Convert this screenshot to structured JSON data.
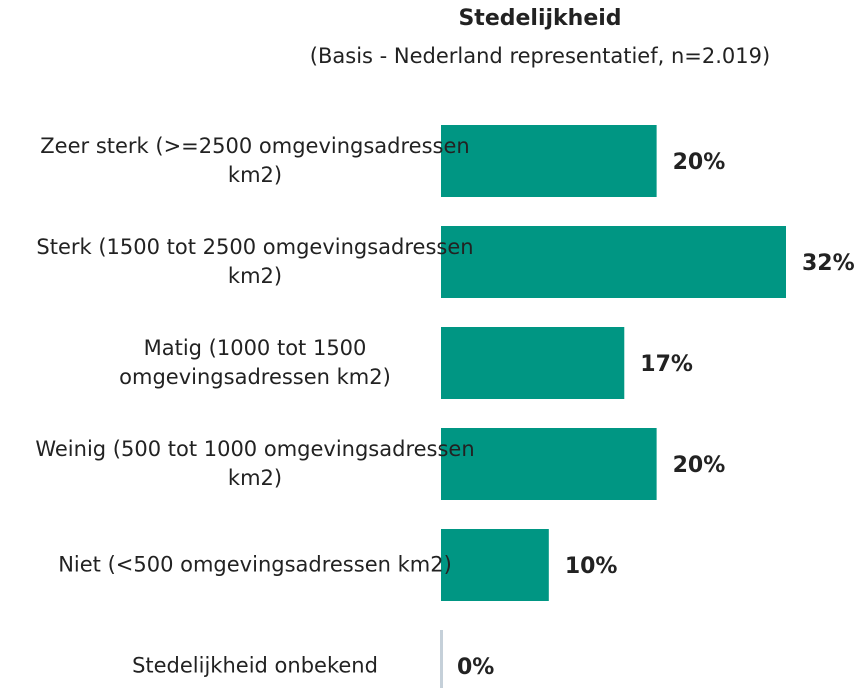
{
  "chart_data": {
    "type": "bar",
    "orientation": "horizontal",
    "title": "Stedelijkheid",
    "subtitle": "(Basis - Nederland representatief, n=2.019)",
    "categories": [
      "Zeer sterk (>=2500 omgevingsadressen km2)",
      "Sterk (1500 tot 2500 omgevingsadressen km2)",
      "Matig (1000 tot 1500 omgevingsadressen km2)",
      "Weinig (500 tot 1000 omgevingsadressen km2)",
      "Niet (<500 omgevingsadressen km2)",
      "Stedelijkheid onbekend"
    ],
    "values": [
      20,
      32,
      17,
      20,
      10,
      0
    ],
    "value_labels": [
      "20%",
      "32%",
      "17%",
      "20%",
      "10%",
      "0%"
    ],
    "color": "#009683"
  }
}
